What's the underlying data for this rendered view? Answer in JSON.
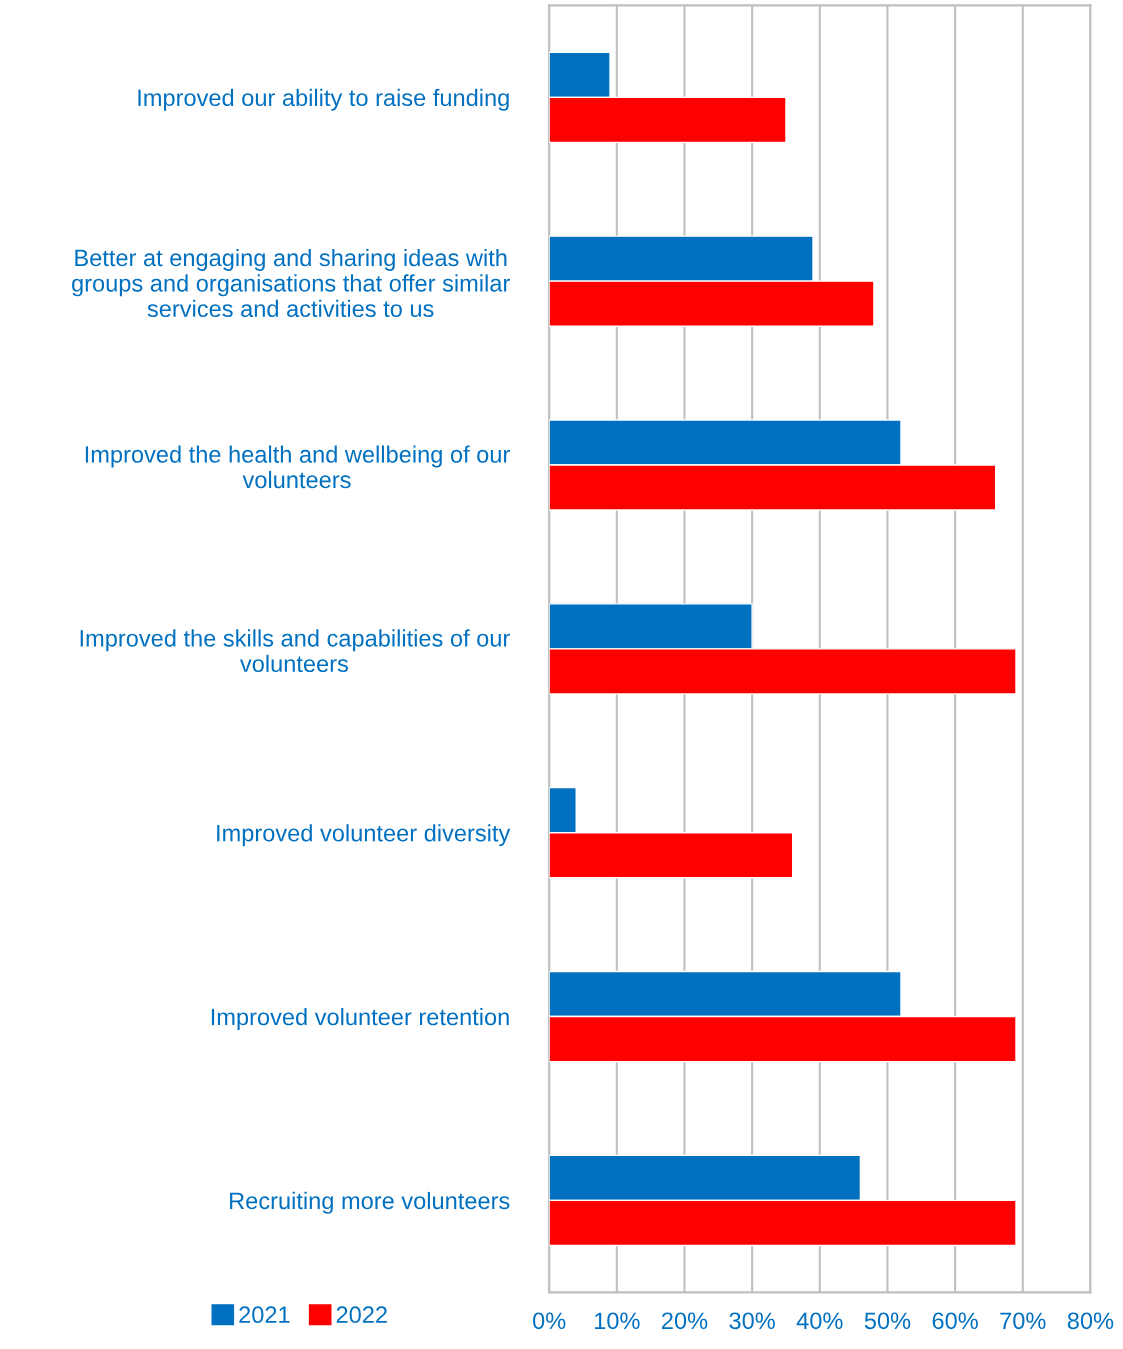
{
  "chart_data": {
    "type": "bar",
    "orientation": "horizontal",
    "categories": [
      "Improved our ability to raise funding",
      "Better at engaging and sharing ideas with\ngroups and organisations that offer similar\nservices and activities to us",
      "Improved the health and wellbeing of our\nvolunteers",
      "Improved the skills and capabilities of our\nvolunteers",
      "Improved volunteer diversity",
      "Improved volunteer retention",
      "Recruiting more volunteers"
    ],
    "series": [
      {
        "name": "2021",
        "color": "#0070c0",
        "values": [
          9,
          39,
          52,
          30,
          4,
          52,
          46
        ]
      },
      {
        "name": "2022",
        "color": "#ff0000",
        "values": [
          35,
          48,
          66,
          69,
          36,
          69,
          69
        ]
      }
    ],
    "xlim": [
      0,
      80
    ],
    "xticks": [
      {
        "value": 0,
        "label": "0%"
      },
      {
        "value": 10,
        "label": "10%"
      },
      {
        "value": 20,
        "label": "20%"
      },
      {
        "value": 30,
        "label": "30%"
      },
      {
        "value": 40,
        "label": "40%"
      },
      {
        "value": 50,
        "label": "50%"
      },
      {
        "value": 60,
        "label": "60%"
      },
      {
        "value": 70,
        "label": "70%"
      },
      {
        "value": 80,
        "label": "80%"
      }
    ],
    "grid": "x",
    "legend": "bottom left"
  }
}
